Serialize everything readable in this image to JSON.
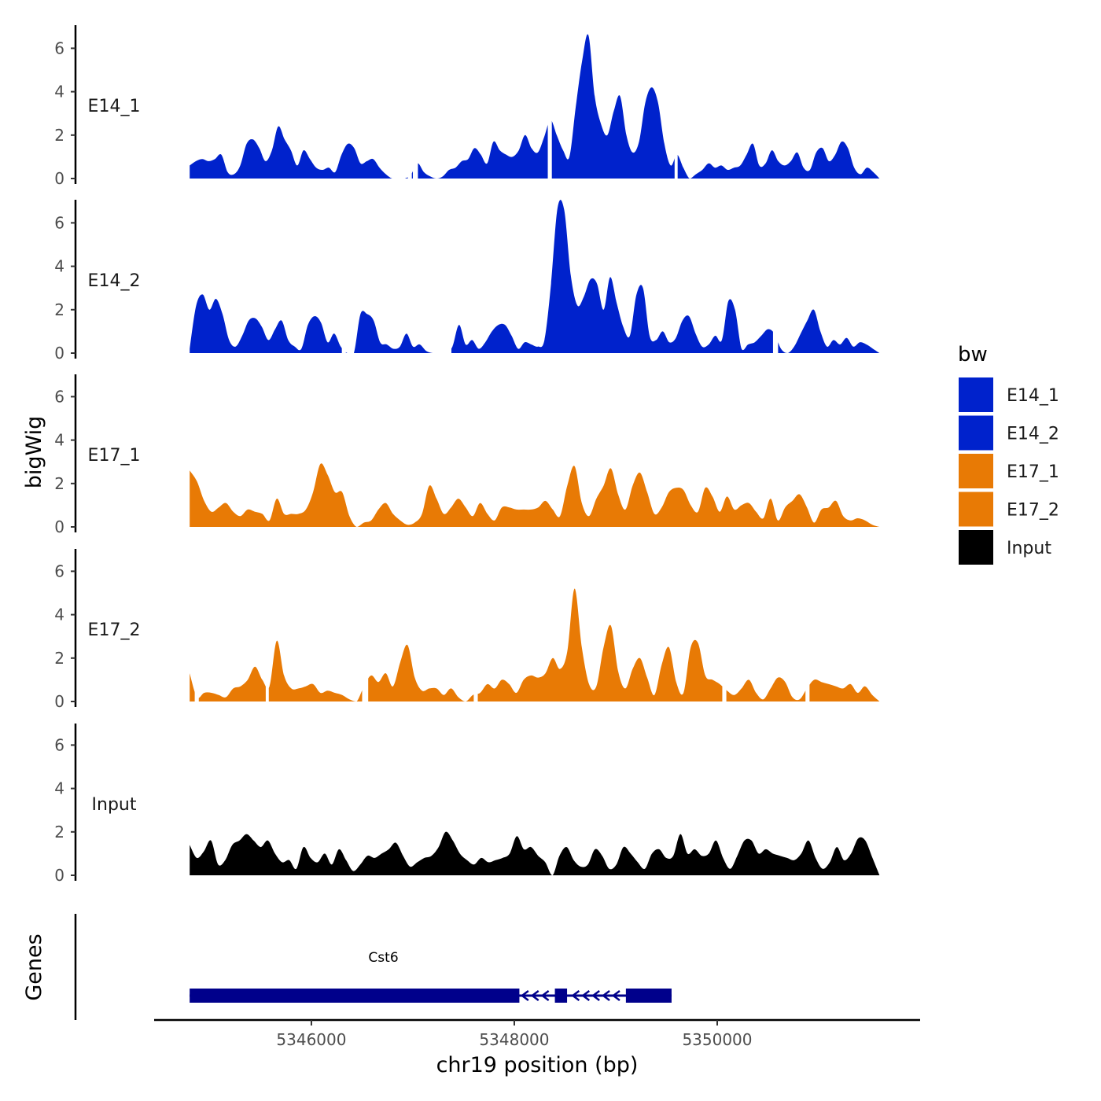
{
  "chart_data": {
    "type": "area",
    "y_axis_title": "bigWig",
    "x_axis_title": "chr19 position (bp)",
    "x_range": [
      5344800,
      5351600
    ],
    "x_axis_range": [
      5344450,
      5352000
    ],
    "x_ticks": [
      5346000,
      5348000,
      5350000
    ],
    "x_tick_labels": [
      "5346000",
      "5348000",
      "5350000"
    ],
    "y_range": [
      0,
      7
    ],
    "y_ticks": [
      0,
      2,
      4,
      6
    ],
    "y_tick_labels": [
      "0",
      "2",
      "4",
      "6"
    ],
    "legend": {
      "title": "bw",
      "entries": [
        {
          "name": "E14_1",
          "color": "#0022CC"
        },
        {
          "name": "E14_2",
          "color": "#0022CC"
        },
        {
          "name": "E17_1",
          "color": "#E87A05"
        },
        {
          "name": "E17_2",
          "color": "#E87A05"
        },
        {
          "name": "Input",
          "color": "#000000"
        }
      ]
    },
    "series": [
      {
        "name": "E14_1",
        "color": "#0022CC",
        "values": [
          0.6,
          0.8,
          0.9,
          0.8,
          0.9,
          1.1,
          0.3,
          0.2,
          0.6,
          1.6,
          1.8,
          1.4,
          0.8,
          1.3,
          2.4,
          1.8,
          1.3,
          0.6,
          1.3,
          0.9,
          0.5,
          0.4,
          0.5,
          0.3,
          1.1,
          1.6,
          1.4,
          0.7,
          0.8,
          0.9,
          0.5,
          0.2,
          0,
          0,
          0,
          0.2,
          0.7,
          0.3,
          0.1,
          0,
          0.1,
          0.4,
          0.5,
          0.8,
          0.9,
          1.4,
          1.1,
          0.7,
          1.7,
          1.3,
          1.1,
          1.0,
          1.3,
          2.0,
          1.4,
          1.2,
          1.9,
          2.7,
          2.0,
          1.3,
          1.0,
          3.3,
          5.4,
          6.6,
          3.8,
          2.5,
          2.0,
          3.1,
          3.8,
          2.0,
          1.2,
          1.7,
          3.5,
          4.2,
          3.5,
          1.6,
          0.6,
          1.1,
          0.5,
          0,
          0.2,
          0.4,
          0.7,
          0.5,
          0.6,
          0.4,
          0.5,
          0.6,
          1.1,
          1.6,
          0.6,
          0.7,
          1.3,
          0.8,
          0.6,
          0.8,
          1.2,
          0.5,
          0.4,
          1.2,
          1.4,
          0.8,
          1.1,
          1.7,
          1.4,
          0.5,
          0.2,
          0.5,
          0.3,
          0
        ],
        "gaps": [
          [
            5347000,
            5347050
          ],
          [
            5346950,
            5346990
          ],
          [
            5348330,
            5348370
          ],
          [
            5349580,
            5349610
          ]
        ]
      },
      {
        "name": "E14_2",
        "color": "#0022CC",
        "values": [
          0.2,
          2.2,
          2.7,
          2.0,
          2.5,
          1.8,
          0.6,
          0.3,
          0.8,
          1.5,
          1.6,
          1.2,
          0.6,
          1.1,
          1.5,
          0.6,
          0.3,
          0.2,
          1.3,
          1.7,
          1.4,
          0.5,
          0.9,
          0.3,
          0,
          0,
          1.8,
          1.8,
          1.5,
          0.5,
          0.4,
          0.2,
          0.3,
          0.9,
          0.3,
          0.4,
          0.1,
          0,
          0,
          0,
          0.3,
          1.3,
          0.4,
          0.6,
          0.2,
          0.5,
          1.0,
          1.3,
          1.3,
          0.8,
          0.2,
          0.5,
          0.4,
          0.3,
          0.6,
          3.2,
          6.7,
          6.6,
          3.6,
          2.2,
          2.6,
          3.4,
          3.2,
          2.0,
          3.5,
          2.3,
          1.2,
          0.8,
          2.7,
          3.0,
          0.8,
          0.6,
          1.0,
          0.5,
          0.7,
          1.5,
          1.7,
          0.9,
          0.3,
          0.4,
          0.8,
          0.6,
          2.4,
          2.0,
          0.2,
          0.4,
          0.5,
          0.8,
          1.1,
          0.9,
          0.2,
          0,
          0.3,
          0.9,
          1.5,
          2.0,
          1.0,
          0.3,
          0.6,
          0.4,
          0.7,
          0.3,
          0.5,
          0.4,
          0.2,
          0
        ],
        "gaps": [
          [
            5346300,
            5346340
          ],
          [
            5347200,
            5347380
          ],
          [
            5350550,
            5350600
          ]
        ]
      },
      {
        "name": "E17_1",
        "color": "#E87A05",
        "values": [
          2.6,
          2.1,
          1.2,
          0.7,
          0.9,
          1.1,
          0.7,
          0.5,
          0.8,
          0.7,
          0.6,
          0.3,
          1.3,
          0.6,
          0.6,
          0.6,
          0.8,
          1.6,
          2.9,
          2.4,
          1.6,
          1.6,
          0.5,
          0,
          0.2,
          0.3,
          0.8,
          1.1,
          0.6,
          0.3,
          0.1,
          0.2,
          0.6,
          1.9,
          1.3,
          0.6,
          0.9,
          1.3,
          0.9,
          0.5,
          1.1,
          0.6,
          0.3,
          0.9,
          0.9,
          0.8,
          0.8,
          0.8,
          0.9,
          1.2,
          0.8,
          0.5,
          1.9,
          2.8,
          1.1,
          0.5,
          1.3,
          1.9,
          2.7,
          1.5,
          0.8,
          1.9,
          2.5,
          1.6,
          0.6,
          0.9,
          1.6,
          1.8,
          1.7,
          1.0,
          0.7,
          1.8,
          1.4,
          0.7,
          1.4,
          0.8,
          1.0,
          1.1,
          0.7,
          0.4,
          1.3,
          0.3,
          0.9,
          1.2,
          1.5,
          0.9,
          0.2,
          0.8,
          0.9,
          1.2,
          0.5,
          0.3,
          0.4,
          0.3,
          0.1,
          0
        ],
        "gaps": []
      },
      {
        "name": "E17_2",
        "color": "#E87A05",
        "values": [
          1.3,
          0.2,
          0.4,
          0.4,
          0.3,
          0.2,
          0.6,
          0.7,
          1.0,
          1.6,
          1.0,
          0.7,
          2.8,
          1.2,
          0.6,
          0.6,
          0.7,
          0.8,
          0.4,
          0.5,
          0.4,
          0.3,
          0.1,
          0,
          0.7,
          1.2,
          0.9,
          1.3,
          0.7,
          1.8,
          2.6,
          1.1,
          0.5,
          0.6,
          0.6,
          0.3,
          0.6,
          0.2,
          0,
          0.3,
          0.4,
          0.8,
          0.6,
          1.0,
          0.8,
          0.4,
          1.0,
          1.2,
          1.1,
          1.3,
          2.0,
          1.5,
          2.3,
          5.2,
          2.5,
          0.8,
          0.7,
          2.5,
          3.5,
          1.4,
          0.6,
          1.5,
          2.0,
          1.1,
          0.3,
          1.7,
          2.5,
          0.9,
          0.4,
          2.5,
          2.7,
          1.2,
          1.0,
          0.8,
          0.5,
          0.3,
          0.6,
          1.0,
          0.4,
          0.1,
          0.6,
          1.1,
          0.9,
          0.2,
          0.1,
          0.6,
          1.0,
          0.9,
          0.8,
          0.7,
          0.6,
          0.8,
          0.4,
          0.7,
          0.3,
          0
        ],
        "gaps": [
          [
            5344850,
            5344890
          ],
          [
            5345550,
            5345580
          ],
          [
            5346500,
            5346560
          ],
          [
            5347600,
            5347640
          ],
          [
            5350050,
            5350090
          ],
          [
            5350870,
            5350910
          ]
        ]
      },
      {
        "name": "Input",
        "color": "#000000",
        "values": [
          1.4,
          0.8,
          1.1,
          1.6,
          0.5,
          0.7,
          1.4,
          1.6,
          1.9,
          1.6,
          1.3,
          1.6,
          1.0,
          0.6,
          0.7,
          0.3,
          1.3,
          0.8,
          0.6,
          1.0,
          0.5,
          1.2,
          0.7,
          0.2,
          0.5,
          0.9,
          0.8,
          1.0,
          1.2,
          1.5,
          0.9,
          0.4,
          0.6,
          0.8,
          0.9,
          1.3,
          2.0,
          1.6,
          1.0,
          0.7,
          0.5,
          0.8,
          0.6,
          0.7,
          0.8,
          1.0,
          1.8,
          1.2,
          1.3,
          0.9,
          0.6,
          0,
          0.9,
          1.3,
          0.7,
          0.4,
          0.5,
          1.2,
          0.9,
          0.3,
          0.5,
          1.3,
          1.0,
          0.6,
          0.3,
          1.0,
          1.2,
          0.8,
          0.9,
          1.9,
          1.0,
          1.2,
          0.9,
          1.0,
          1.6,
          0.8,
          0.3,
          0.9,
          1.6,
          1.6,
          1.0,
          1.2,
          1.0,
          0.9,
          0.8,
          0.7,
          1.0,
          1.6,
          0.8,
          0.3,
          0.6,
          1.3,
          0.7,
          1.0,
          1.7,
          1.6,
          0.8,
          0
        ],
        "gaps": []
      }
    ],
    "genes_track": {
      "label": "Genes",
      "gene": {
        "name": "Cst6",
        "strand": "-",
        "start": 5344800,
        "end": 5349550,
        "color": "#00008B",
        "exons": [
          [
            5344800,
            5348050
          ],
          [
            5348400,
            5348520
          ],
          [
            5349100,
            5349550
          ]
        ],
        "intron_arrows": [
          5348100,
          5348200,
          5348300,
          5348600,
          5348700,
          5348800,
          5348900,
          5349000
        ]
      }
    }
  }
}
